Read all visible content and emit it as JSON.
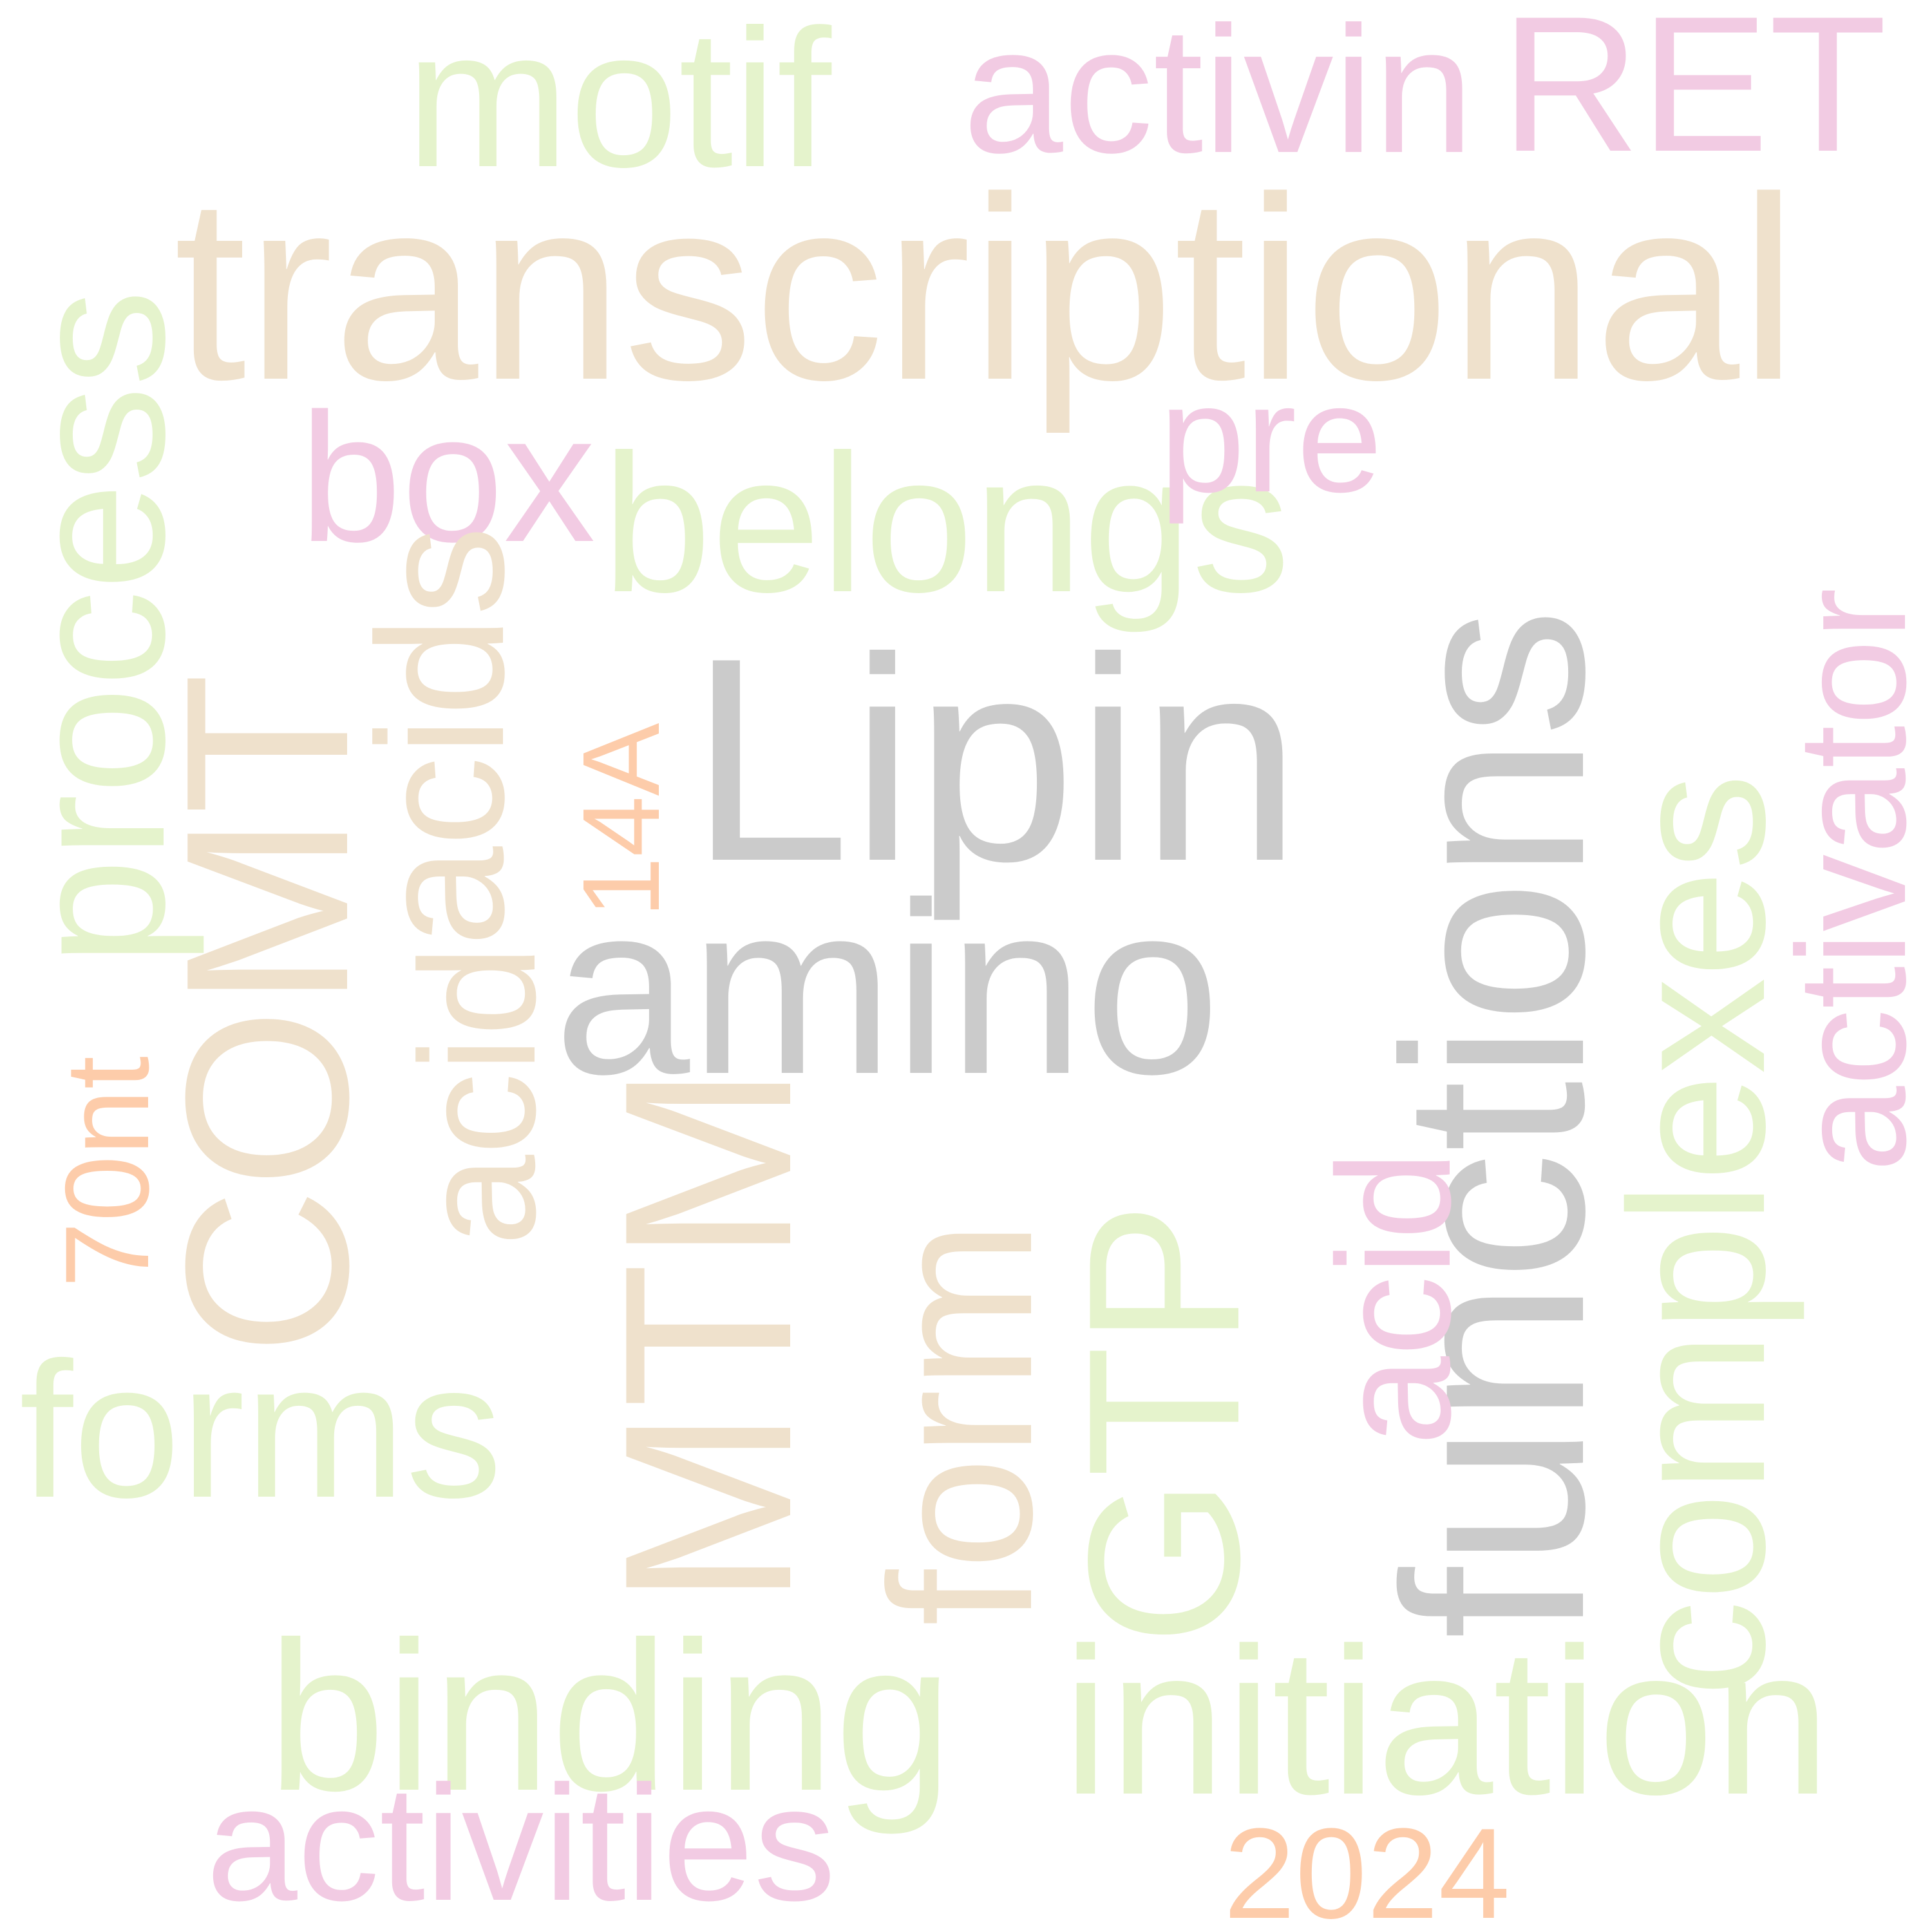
{
  "palette": {
    "green": "#e5f3cc",
    "tan": "#efe1cc",
    "pink": "#f2cbe3",
    "gray": "#cbcbcb",
    "peach": "#fdccaa"
  },
  "words": {
    "lipin": "Lipin",
    "amino": "amino",
    "functions": "functions",
    "transcriptional": "transcriptional",
    "comt": "COMT",
    "mtm": "MTM",
    "acids_vertical": "acids",
    "acid_tan_vertical": "acid",
    "form": "form",
    "gtp": "GTP",
    "complexes": "complexes",
    "process": "process",
    "motif": "motif",
    "activin": "activin",
    "ret": "RET",
    "box": "box",
    "belongs": "belongs",
    "pre": "pre",
    "activator": "activator",
    "acid_pink_vertical": "acid",
    "seventy_nt": "70nt",
    "fourteen_a": "14A",
    "forms": "forms",
    "binding": "binding",
    "initiation": "initiation",
    "activities": "activities",
    "year": "2024"
  }
}
